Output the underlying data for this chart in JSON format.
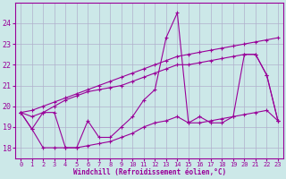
{
  "xlabel": "Windchill (Refroidissement éolien,°C)",
  "background_color": "#cce8e8",
  "grid_color": "#b0b0cc",
  "line_color": "#990099",
  "xlim": [
    -0.5,
    23.5
  ],
  "ylim": [
    17.5,
    25.0
  ],
  "yticks": [
    18,
    19,
    20,
    21,
    22,
    23,
    24
  ],
  "xticks": [
    0,
    1,
    2,
    3,
    4,
    5,
    6,
    7,
    8,
    9,
    10,
    11,
    12,
    13,
    14,
    15,
    16,
    17,
    18,
    19,
    20,
    21,
    22,
    23
  ],
  "series": [
    {
      "x": [
        0,
        1,
        2,
        3,
        4,
        5,
        6,
        7,
        8,
        9,
        10,
        11,
        12,
        13,
        14,
        15,
        16,
        17,
        18,
        19,
        20,
        21,
        22,
        23
      ],
      "y": [
        19.7,
        18.9,
        19.7,
        19.7,
        18.0,
        18.0,
        19.3,
        18.5,
        18.5,
        19.0,
        19.5,
        20.3,
        20.8,
        23.3,
        24.5,
        19.2,
        19.5,
        19.2,
        19.2,
        19.5,
        22.5,
        22.5,
        21.5,
        19.3
      ]
    },
    {
      "x": [
        0,
        1,
        2,
        3,
        4,
        5,
        6,
        7,
        8,
        9,
        10,
        11,
        12,
        13,
        14,
        15,
        16,
        17,
        18,
        19,
        20,
        21,
        22,
        23
      ],
      "y": [
        19.7,
        19.8,
        20.0,
        20.2,
        20.4,
        20.6,
        20.8,
        21.0,
        21.2,
        21.4,
        21.6,
        21.8,
        22.0,
        22.2,
        22.4,
        22.5,
        22.6,
        22.7,
        22.8,
        22.9,
        23.0,
        23.1,
        23.2,
        23.3
      ]
    },
    {
      "x": [
        0,
        1,
        2,
        3,
        4,
        5,
        6,
        7,
        8,
        9,
        10,
        11,
        12,
        13,
        14,
        15,
        16,
        17,
        18,
        19,
        20,
        21,
        22,
        23
      ],
      "y": [
        19.7,
        19.5,
        19.7,
        20.0,
        20.3,
        20.5,
        20.7,
        20.8,
        20.9,
        21.0,
        21.2,
        21.4,
        21.6,
        21.8,
        22.0,
        22.0,
        22.1,
        22.2,
        22.3,
        22.4,
        22.5,
        22.5,
        21.5,
        19.3
      ]
    },
    {
      "x": [
        0,
        1,
        2,
        3,
        4,
        5,
        6,
        7,
        8,
        9,
        10,
        11,
        12,
        13,
        14,
        15,
        16,
        17,
        18,
        19,
        20,
        21,
        22,
        23
      ],
      "y": [
        19.7,
        18.9,
        18.0,
        18.0,
        18.0,
        18.0,
        18.1,
        18.2,
        18.3,
        18.5,
        18.7,
        19.0,
        19.2,
        19.3,
        19.5,
        19.2,
        19.2,
        19.3,
        19.4,
        19.5,
        19.6,
        19.7,
        19.8,
        19.3
      ]
    }
  ]
}
